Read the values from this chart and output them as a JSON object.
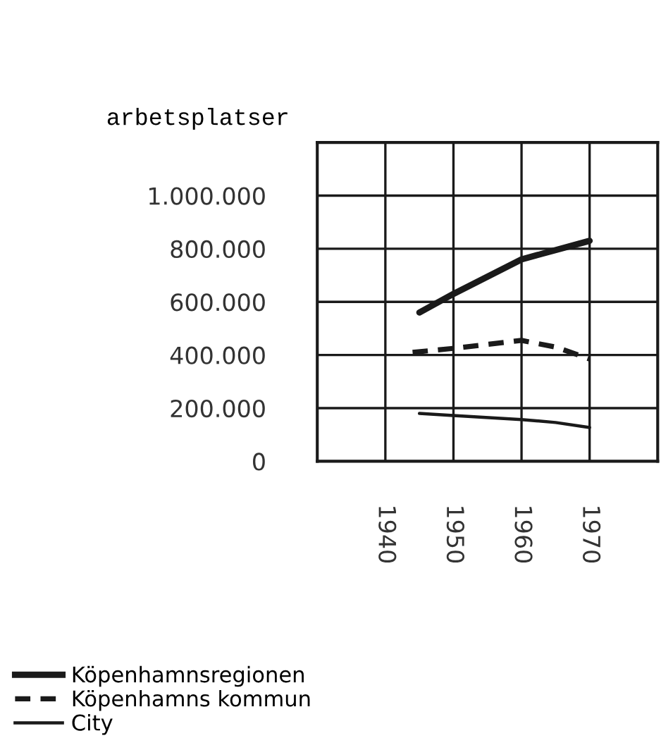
{
  "chart_data": {
    "type": "line",
    "ylabel": "arbetsplatser",
    "xlim": [
      1930,
      1980
    ],
    "xticks": [
      {
        "value": 1940,
        "label": "1940"
      },
      {
        "value": 1950,
        "label": "1950"
      },
      {
        "value": 1960,
        "label": "1960"
      },
      {
        "value": 1970,
        "label": "1970"
      }
    ],
    "ylim": [
      0,
      1200000
    ],
    "yticks": [
      {
        "value": 0,
        "label": "0"
      },
      {
        "value": 200000,
        "label": "200.000"
      },
      {
        "value": 400000,
        "label": "400.000"
      },
      {
        "value": 600000,
        "label": "600.000"
      },
      {
        "value": 800000,
        "label": "800.000"
      },
      {
        "value": 1000000,
        "label": "1.000.000"
      },
      {
        "value": 1200000,
        "label": null
      }
    ],
    "grid": true,
    "legend": "bottom left",
    "marker": "none",
    "series": [
      {
        "name": "Köpenhamnsregionen",
        "color": "#1a1a1a",
        "line_style": "solid",
        "x": [
          1945,
          1950,
          1960,
          1970
        ],
        "values": [
          560000,
          630000,
          760000,
          830000
        ]
      },
      {
        "name": "Köpenhamns kommun",
        "color": "#1a1a1a",
        "line_style": "dashed",
        "x": [
          1944,
          1950,
          1960,
          1965,
          1970
        ],
        "values": [
          410000,
          425000,
          455000,
          430000,
          385000
        ]
      },
      {
        "name": "City",
        "color": "#1a1a1a",
        "line_style": "solid",
        "x": [
          1945,
          1950,
          1960,
          1965,
          1970
        ],
        "values": [
          180000,
          172000,
          157000,
          146000,
          127000
        ]
      }
    ]
  }
}
